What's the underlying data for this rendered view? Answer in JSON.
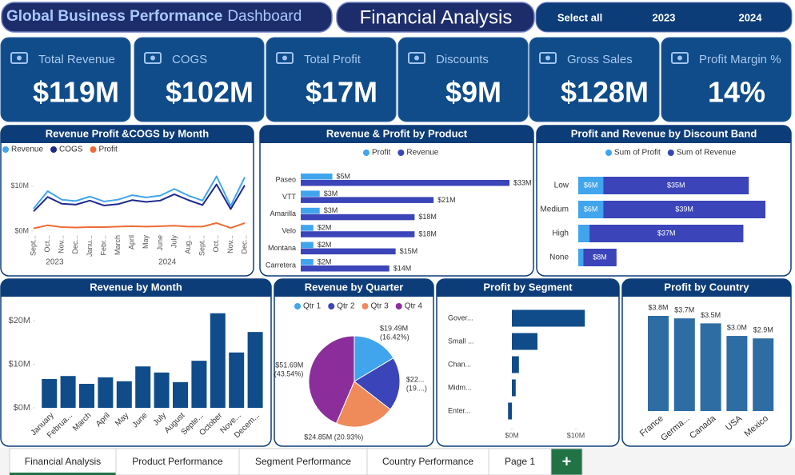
{
  "header": {
    "title": "Global Business Performance",
    "title_suffix": "Dashboard",
    "subtitle": "Financial Analysis",
    "slicer": [
      "Select all",
      "2023",
      "2024"
    ]
  },
  "kpis": [
    {
      "label": "Total Revenue",
      "value": "$119M"
    },
    {
      "label": "COGS",
      "value": "$102M"
    },
    {
      "label": "Total Profit",
      "value": "$17M"
    },
    {
      "label": "Discounts",
      "value": "$9M"
    },
    {
      "label": "Gross Sales",
      "value": "$128M"
    },
    {
      "label": "Profit Margin %",
      "value": "14%"
    }
  ],
  "chart_data": [
    {
      "type": "line",
      "title": "Revenue Profit &COGS by Month",
      "groups": [
        {
          "name": "2023",
          "categories": [
            "Sept...",
            "Oct...",
            "Nov...",
            "Dec..."
          ]
        },
        {
          "name": "2024",
          "categories": [
            "Janu...",
            "Febr...",
            "March",
            "April",
            "May",
            "June",
            "July",
            "Aug...",
            "Sept...",
            "Oct...",
            "Nov...",
            "Dec..."
          ]
        }
      ],
      "series": [
        {
          "name": "Revenue",
          "color": "#41a5ee",
          "values": [
            5.0,
            8.9,
            7.0,
            6.7,
            7.7,
            6.6,
            7.0,
            8.0,
            7.5,
            7.9,
            9.4,
            7.9,
            6.8,
            12.2,
            5.6,
            12.0
          ]
        },
        {
          "name": "COGS",
          "color": "#1f2a8c",
          "values": [
            4.4,
            7.6,
            6.1,
            5.9,
            6.8,
            5.7,
            6.0,
            6.9,
            6.5,
            6.8,
            8.2,
            6.9,
            5.8,
            10.4,
            4.9,
            10.2
          ]
        },
        {
          "name": "Profit",
          "color": "#ee6c35",
          "values": [
            0.6,
            1.3,
            0.9,
            0.8,
            0.9,
            0.9,
            1.0,
            1.1,
            1.0,
            1.1,
            1.2,
            1.0,
            1.0,
            1.8,
            0.7,
            1.8
          ]
        }
      ],
      "ylim": [
        0,
        13
      ],
      "yticks": [
        {
          "value": 0,
          "label": "$0M"
        },
        {
          "value": 10,
          "label": "$10M"
        }
      ]
    },
    {
      "type": "bar",
      "orientation": "horizontal",
      "title": "Revenue & Profit by Product",
      "categories": [
        "Paseo",
        "VTT",
        "Amarilla",
        "Velo",
        "Montana",
        "Carretera"
      ],
      "series": [
        {
          "name": "Profit",
          "color": "#41a5ee",
          "values": [
            5,
            3,
            3,
            2,
            2,
            2
          ],
          "value_labels": [
            "$5M",
            "$3M",
            "$3M",
            "$2M",
            "$2M",
            "$2M"
          ]
        },
        {
          "name": "Revenue",
          "color": "#3b44b8",
          "values": [
            33,
            21,
            18,
            18,
            15,
            14
          ],
          "value_labels": [
            "$33M",
            "$21M",
            "$18M",
            "$18M",
            "$15M",
            "$14M"
          ]
        }
      ]
    },
    {
      "type": "bar",
      "orientation": "horizontal",
      "stacked": true,
      "title": "Profit and Revenue by Discount Band",
      "categories": [
        "Low",
        "Medium",
        "High",
        "None"
      ],
      "series": [
        {
          "name": "Sum of Profit",
          "color": "#41a5ee",
          "values": [
            6,
            6,
            2.7,
            1.2
          ],
          "value_labels": [
            "$6M",
            "$6M",
            null,
            null
          ]
        },
        {
          "name": "Sum of Revenue",
          "color": "#3b44b8",
          "values": [
            35,
            39,
            37,
            8
          ],
          "value_labels": [
            "$35M",
            "$39M",
            "$37M",
            "$8M"
          ]
        }
      ]
    },
    {
      "type": "bar",
      "orientation": "vertical",
      "title": "Revenue by Month",
      "color": "#0f4c89",
      "categories": [
        "January",
        "Februa...",
        "March",
        "April",
        "May",
        "June",
        "July",
        "August",
        "Septe...",
        "October",
        "Nove...",
        "Decem..."
      ],
      "values": [
        6.6,
        7.3,
        5.5,
        7.0,
        6.1,
        9.5,
        8.1,
        5.9,
        10.8,
        21.7,
        12.7,
        17.4
      ],
      "ylim": [
        0,
        23
      ],
      "yticks": [
        {
          "value": 0,
          "label": "$0M"
        },
        {
          "value": 10,
          "label": "$10M"
        },
        {
          "value": 20,
          "label": "$20M"
        }
      ]
    },
    {
      "type": "pie",
      "title": "Revenue by Quarter",
      "categories": [
        "Qtr 1",
        "Qtr 2",
        "Qtr 3",
        "Qtr 4"
      ],
      "colors": [
        "#41a5ee",
        "#3b44b8",
        "#ef8a5a",
        "#8b2e9b"
      ],
      "values": [
        19.49,
        22.67,
        24.85,
        51.69
      ],
      "value_labels": [
        "$19.49M\n(16.42%)",
        "$22...\n(19....)",
        "$24.85M (20.93%)",
        "$51.69M\n(43.54%)"
      ]
    },
    {
      "type": "bar",
      "orientation": "horizontal",
      "title": "Profit by Segment",
      "color": "#0f4c89",
      "categories": [
        "Gover...",
        "Small ...",
        "Chan...",
        "Midm...",
        "Enter..."
      ],
      "values": [
        11.4,
        4.0,
        1.1,
        0.6,
        -0.6
      ],
      "xlim": [
        -1,
        13
      ],
      "xticks": [
        {
          "value": 0,
          "label": "$0M"
        },
        {
          "value": 10,
          "label": "$10M"
        }
      ]
    },
    {
      "type": "bar",
      "orientation": "vertical",
      "title": "Profit by Country",
      "color": "#2e6ca4",
      "categories": [
        "France",
        "Germa...",
        "Canada",
        "USA",
        "Mexico"
      ],
      "values": [
        3.8,
        3.7,
        3.5,
        3.0,
        2.9
      ],
      "value_labels": [
        "$3.8M",
        "$3.7M",
        "$3.5M",
        "$3.0M",
        "$2.9M"
      ]
    }
  ],
  "tabs": [
    "Financial Analysis",
    "Product Performance",
    "Segment Performance",
    "Country Performance",
    "Page 1",
    "+"
  ]
}
